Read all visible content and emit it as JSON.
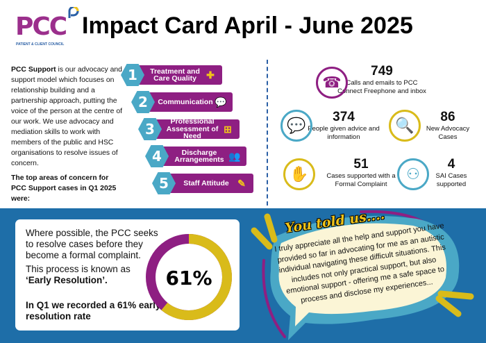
{
  "logo": {
    "text": "PCC",
    "subtitle": "PATIENT & CLIENT COUNCIL"
  },
  "header": {
    "title": "Impact Card April - June 2025"
  },
  "intro": {
    "bold": "PCC Support",
    "text": " is our advocacy and support model which focuses on relationship building and a partnership approach, putting the voice of the person at the centre of our work. We use advocacy and mediation skills to work with members of the public and HSC organisations to resolve issues of concern.",
    "top_areas": "The top areas of concern for PCC Support cases in Q1 2025 were:"
  },
  "areas": [
    {
      "num": "1",
      "label": "Treatment and Care Quality",
      "icon": "care-hands-icon"
    },
    {
      "num": "2",
      "label": "Communication",
      "icon": "speech-bubbles-icon"
    },
    {
      "num": "3",
      "label": "Professional Assessment of Need",
      "icon": "medical-document-icon"
    },
    {
      "num": "4",
      "label": "Discharge Arrangements",
      "icon": "group-icon"
    },
    {
      "num": "5",
      "label": "Staff Attitude",
      "icon": "clipboard-pen-icon"
    }
  ],
  "stats": [
    {
      "value": "749",
      "label": "Calls and emails to PCC Connect Freephone and inbox",
      "icon": "phone-icon"
    },
    {
      "value": "374",
      "label": "People given advice and information",
      "icon": "chat-bubble-icon"
    },
    {
      "value": "86",
      "label": "New Advocacy Cases",
      "icon": "magnifier-person-icon"
    },
    {
      "value": "51",
      "label": "Cases supported with a Formal Complaint",
      "icon": "hand-people-icon"
    },
    {
      "value": "4",
      "label": "SAI Cases supported",
      "icon": "network-people-icon"
    }
  ],
  "early_resolution": {
    "p1": "Where possible, the PCC seeks to resolve cases before they become a formal complaint.",
    "p2": "This process is known as",
    "p2_bold": "‘Early Resolution’.",
    "p3": "In Q1 we recorded a 61% early resolution rate",
    "percent_label": "61%",
    "percent": 61
  },
  "colors": {
    "purple": "#8e1f82",
    "yellow": "#d9bb1a",
    "blue": "#1e6ea8",
    "teal": "#4aa8c6"
  },
  "feedback": {
    "heading": "You told us....",
    "quote": "I truly appreciate all the help and support you have provided so far in advocating for me as an autistic individual navigating these difficult situations. This includes not only practical support, but also emotional support - offering me a safe space to process and disclose my experiences..."
  }
}
